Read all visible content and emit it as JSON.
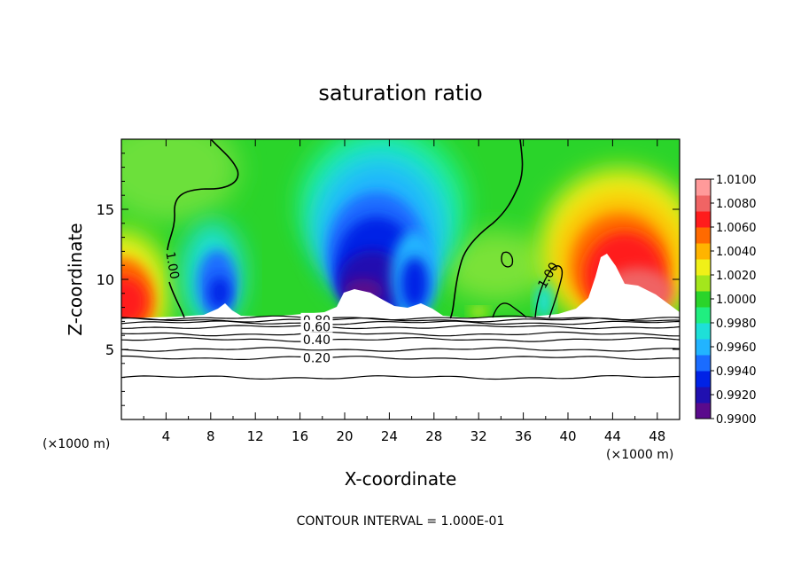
{
  "chart_data": {
    "type": "heatmap",
    "title": "saturation ratio",
    "xlabel": "X-coordinate",
    "ylabel": "Z-coordinate",
    "x_unit_left": "(×1000 m)",
    "x_unit_right": "(×1000 m)",
    "footer": "CONTOUR INTERVAL = 1.000E-01",
    "xlim": [
      0,
      50
    ],
    "ylim": [
      0,
      20
    ],
    "x_ticks": [
      4,
      8,
      12,
      16,
      20,
      24,
      28,
      32,
      36,
      40,
      44,
      48
    ],
    "y_ticks": [
      5,
      10,
      15
    ],
    "colorbar": {
      "min": 0.99,
      "max": 1.01,
      "tick_labels": [
        "1.0100",
        "1.0080",
        "1.0060",
        "1.0040",
        "1.0020",
        "1.0000",
        "0.9980",
        "0.9960",
        "0.9940",
        "0.9920",
        "0.9900"
      ],
      "colors": [
        "#5a0a8c",
        "#2010b0",
        "#0022e6",
        "#1a6cff",
        "#22b4ff",
        "#1ee0d8",
        "#20ee80",
        "#2ad42a",
        "#a4e61c",
        "#f0f018",
        "#ffb400",
        "#ff6a00",
        "#ff1c1c",
        "#f06464",
        "#ff9a9a"
      ]
    },
    "contour_labels": [
      {
        "text": "1.00",
        "x": 4.6,
        "z": 11.0
      },
      {
        "text": "1.00",
        "x": 38.2,
        "z": 10.3
      },
      {
        "text": "0.80",
        "x": 17.5,
        "z": 7.1
      },
      {
        "text": "0.60",
        "x": 17.5,
        "z": 6.6
      },
      {
        "text": "0.40",
        "x": 17.5,
        "z": 5.7
      },
      {
        "text": "0.20",
        "x": 17.5,
        "z": 4.4
      }
    ],
    "surface_z": 7.3,
    "contour_levels": [
      0.1,
      0.2,
      0.3,
      0.4,
      0.5,
      0.6,
      0.7,
      0.8,
      0.9,
      1.0
    ]
  }
}
